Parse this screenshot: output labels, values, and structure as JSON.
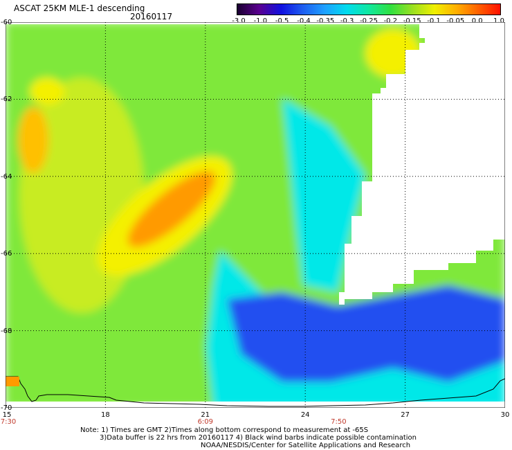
{
  "header": {
    "title": "ASCAT 25KM MLE-1 descending",
    "date": "20160117"
  },
  "colorbar": {
    "labels": [
      "-3.0",
      "-1.0",
      "-0.5",
      "-0.4",
      "-0.35",
      "-0.3",
      "-0.25",
      "-0.2",
      "-0.15",
      "-0.1",
      "-0.05",
      "0.0",
      "1.0"
    ],
    "colors": [
      "#1a0030",
      "#5a0090",
      "#1010e0",
      "#1e5ef0",
      "#1ea0ff",
      "#00dcee",
      "#10e8a0",
      "#30e040",
      "#9ae020",
      "#f0f000",
      "#ffb000",
      "#ff6000",
      "#ff1000"
    ]
  },
  "map": {
    "lat_labels": [
      "-60",
      "-62",
      "-64",
      "-66",
      "-68",
      "-70"
    ],
    "lon_labels": [
      "15",
      "18",
      "21",
      "24",
      "27",
      "30"
    ],
    "time_labels": [
      {
        "lon": "15",
        "time": "7:30"
      },
      {
        "lon": "21",
        "time": "6:09"
      },
      {
        "lon": "25",
        "time": "7:50"
      }
    ],
    "colors": {
      "land": "#ffffff",
      "grid": "#000000",
      "coast": "#000000",
      "orange": "#ff9a00",
      "yellow": "#f4f000",
      "green": "#7fe83a",
      "cyan": "#00e8e8",
      "blue": "#2050f0"
    }
  },
  "notes": {
    "line1": "Note: 1) Times are GMT 2)Times along bottom correspond to measurement at -65S",
    "line2": "3)Data buffer is 22 hrs from 20160117 4) Black wind barbs indicate possible contamination",
    "line3": "NOAA/NESDIS/Center for Satellite Applications and Research"
  }
}
